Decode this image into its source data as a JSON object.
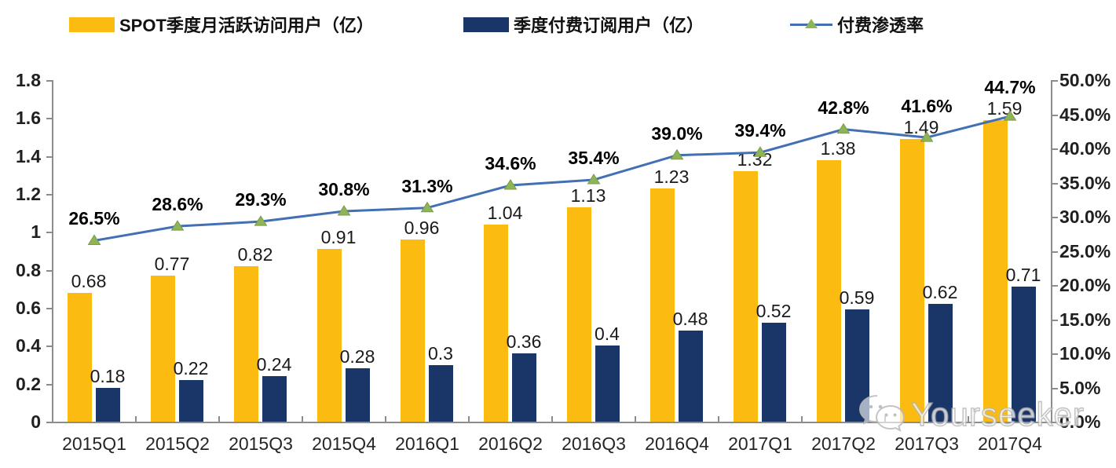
{
  "legend": {
    "mau": {
      "label": "SPOT季度月活跃访问用户（亿）",
      "color": "#FCBB10"
    },
    "subs": {
      "label": "季度付费订阅用户（亿）",
      "color": "#1A3567"
    },
    "rate": {
      "label": "付费渗透率",
      "line_color": "#4370B4",
      "marker_color": "#8FB357"
    }
  },
  "watermark": {
    "icon": "wechat-icon",
    "text": "Yourseeker"
  },
  "chart_data": {
    "type": "bar+line",
    "categories": [
      "2015Q1",
      "2015Q2",
      "2015Q3",
      "2015Q4",
      "2016Q1",
      "2016Q2",
      "2016Q3",
      "2016Q4",
      "2017Q1",
      "2017Q2",
      "2017Q3",
      "2017Q4"
    ],
    "series": [
      {
        "name": "SPOT季度月活跃访问用户（亿）",
        "type": "bar",
        "axis": "left",
        "color": "#FCBB10",
        "values": [
          0.68,
          0.77,
          0.82,
          0.91,
          0.96,
          1.04,
          1.13,
          1.23,
          1.32,
          1.38,
          1.49,
          1.59
        ],
        "labels": [
          "0.68",
          "0.77",
          "0.82",
          "0.91",
          "0.96",
          "1.04",
          "1.13",
          "1.23",
          "1.32",
          "1.38",
          "1.49",
          "1.59"
        ]
      },
      {
        "name": "季度付费订阅用户（亿）",
        "type": "bar",
        "axis": "left",
        "color": "#1A3567",
        "values": [
          0.18,
          0.22,
          0.24,
          0.28,
          0.3,
          0.36,
          0.4,
          0.48,
          0.52,
          0.59,
          0.62,
          0.71
        ],
        "labels": [
          "0.18",
          "0.22",
          "0.24",
          "0.28",
          "0.3",
          "0.36",
          "0.4",
          "0.48",
          "0.52",
          "0.59",
          "0.62",
          "0.71"
        ]
      },
      {
        "name": "付费渗透率",
        "type": "line",
        "axis": "right",
        "color": "#4370B4",
        "marker": "triangle",
        "marker_color": "#8FB357",
        "values": [
          26.5,
          28.6,
          29.3,
          30.8,
          31.3,
          34.6,
          35.4,
          39.0,
          39.4,
          42.8,
          41.6,
          44.7
        ],
        "labels": [
          "26.5%",
          "28.6%",
          "29.3%",
          "30.8%",
          "31.3%",
          "34.6%",
          "35.4%",
          "39.0%",
          "39.4%",
          "42.8%",
          "41.6%",
          "44.7%"
        ]
      }
    ],
    "left_axis": {
      "min": 0,
      "max": 1.8,
      "ticks": [
        "1.8",
        "1.6",
        "1.4",
        "1.2",
        "1",
        "0.8",
        "0.6",
        "0.4",
        "0.2",
        "0"
      ]
    },
    "right_axis": {
      "min": 0,
      "max": 50,
      "ticks": [
        "50.0%",
        "45.0%",
        "40.0%",
        "35.0%",
        "30.0%",
        "25.0%",
        "20.0%",
        "15.0%",
        "10.0%",
        "5.0%",
        "0.0%"
      ]
    },
    "grid": false,
    "legend_position": "top"
  }
}
